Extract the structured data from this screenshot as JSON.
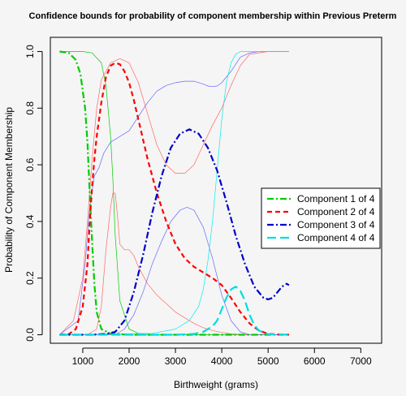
{
  "chart_data": {
    "type": "line",
    "title": "Confidence bounds for probability of component membership within Previous Preterm",
    "xlabel": "Birthweight (grams)",
    "ylabel": "Probability of Component Membership",
    "xlim": [
      300,
      7450
    ],
    "ylim": [
      -0.03,
      1.05
    ],
    "xticks": [
      1000,
      2000,
      3000,
      4000,
      5000,
      6000,
      7000
    ],
    "yticks": [
      0.0,
      0.2,
      0.4,
      0.6,
      0.8,
      1.0
    ],
    "ytick_labels": [
      "0.0",
      "0.2",
      "0.4",
      "0.6",
      "0.8",
      "1.0"
    ],
    "grid": false,
    "legend_position": "right",
    "series": [
      {
        "name": "Component 1 of 4",
        "role": "estimate",
        "color": "#00cc00",
        "dash": "dashdot",
        "width": 2.2,
        "x": [
          500,
          700,
          850,
          950,
          1050,
          1100,
          1150,
          1200,
          1250,
          1300,
          1400,
          1600,
          2000,
          3000,
          4000,
          5000,
          5450
        ],
        "y": [
          1.0,
          0.995,
          0.97,
          0.92,
          0.8,
          0.68,
          0.5,
          0.33,
          0.18,
          0.08,
          0.02,
          0.004,
          0.0,
          0.0,
          0.0,
          0.0,
          0.0
        ]
      },
      {
        "name": "Component 2 of 4",
        "role": "estimate",
        "color": "#ff0000",
        "dash": "dashed",
        "width": 2.2,
        "x": [
          500,
          700,
          850,
          1000,
          1100,
          1150,
          1200,
          1250,
          1300,
          1400,
          1500,
          1600,
          1700,
          1800,
          1900,
          2000,
          2100,
          2200,
          2400,
          2600,
          2800,
          3000,
          3200,
          3400,
          3600,
          3800,
          4000,
          4200,
          4400,
          4600,
          4800,
          5000,
          5450
        ],
        "y": [
          0.0,
          0.002,
          0.02,
          0.1,
          0.25,
          0.4,
          0.52,
          0.62,
          0.7,
          0.82,
          0.91,
          0.95,
          0.96,
          0.955,
          0.93,
          0.89,
          0.83,
          0.76,
          0.62,
          0.5,
          0.4,
          0.32,
          0.27,
          0.24,
          0.22,
          0.2,
          0.175,
          0.13,
          0.08,
          0.04,
          0.015,
          0.003,
          0.0
        ]
      },
      {
        "name": "Component 3 of 4",
        "role": "estimate",
        "color": "#0000cc",
        "dash": "dashdot",
        "width": 2.2,
        "x": [
          500,
          1200,
          1500,
          1700,
          1900,
          2100,
          2300,
          2500,
          2700,
          2900,
          3100,
          3300,
          3500,
          3700,
          3900,
          4100,
          4300,
          4500,
          4700,
          4900,
          5000,
          5100,
          5200,
          5300,
          5400,
          5450
        ],
        "y": [
          0.0,
          0.0,
          0.003,
          0.01,
          0.05,
          0.15,
          0.28,
          0.43,
          0.56,
          0.66,
          0.71,
          0.725,
          0.71,
          0.66,
          0.58,
          0.47,
          0.35,
          0.25,
          0.17,
          0.13,
          0.125,
          0.13,
          0.15,
          0.17,
          0.18,
          0.175
        ]
      },
      {
        "name": "Component 4 of 4",
        "role": "estimate",
        "color": "#00dddd",
        "dash": "longdash",
        "width": 2.2,
        "x": [
          500,
          3000,
          3400,
          3600,
          3800,
          3900,
          4000,
          4100,
          4200,
          4300,
          4400,
          4500,
          4600,
          4700,
          4800,
          5000,
          5450
        ],
        "y": [
          0.0,
          0.0,
          0.003,
          0.01,
          0.03,
          0.05,
          0.09,
          0.13,
          0.16,
          0.17,
          0.155,
          0.12,
          0.07,
          0.035,
          0.015,
          0.002,
          0.0
        ]
      },
      {
        "role": "upper-bound",
        "color": "#00cc00",
        "dash": "solid",
        "width": 0.7,
        "x": [
          500,
          1000,
          1200,
          1400,
          1500,
          1600,
          1650,
          1700,
          1800,
          2000,
          2200,
          2500,
          3000,
          5450
        ],
        "y": [
          1.0,
          1.0,
          0.995,
          0.96,
          0.88,
          0.7,
          0.55,
          0.35,
          0.12,
          0.02,
          0.005,
          0.001,
          0.0,
          0.0
        ]
      },
      {
        "role": "upper-bound",
        "color": "#ff6666",
        "dash": "solid",
        "width": 0.7,
        "x": [
          500,
          800,
          1000,
          1100,
          1200,
          1300,
          1400,
          1600,
          1800,
          2000,
          2200,
          2400,
          2600,
          2800,
          3000,
          3200,
          3400,
          3600,
          3800,
          4000,
          4200,
          4400,
          4600,
          5000,
          5450
        ],
        "y": [
          0.0,
          0.05,
          0.2,
          0.4,
          0.62,
          0.8,
          0.9,
          0.96,
          0.975,
          0.96,
          0.89,
          0.78,
          0.67,
          0.6,
          0.57,
          0.57,
          0.6,
          0.67,
          0.74,
          0.8,
          0.88,
          0.95,
          0.99,
          1.0,
          1.0
        ]
      },
      {
        "role": "lower-bound",
        "color": "#ff6666",
        "dash": "solid",
        "width": 0.7,
        "x": [
          500,
          1100,
          1300,
          1400,
          1500,
          1600,
          1650,
          1700,
          1750,
          1800,
          1900,
          2000,
          2100,
          2200,
          2400,
          2600,
          2800,
          3000,
          3200,
          3400,
          3600,
          3800,
          4000,
          4200,
          4500,
          5450
        ],
        "y": [
          0.0,
          0.0,
          0.02,
          0.1,
          0.3,
          0.45,
          0.5,
          0.5,
          0.42,
          0.32,
          0.3,
          0.3,
          0.28,
          0.24,
          0.18,
          0.14,
          0.11,
          0.08,
          0.06,
          0.04,
          0.025,
          0.015,
          0.008,
          0.003,
          0.0,
          0.0
        ]
      },
      {
        "role": "upper-bound",
        "color": "#6666ff",
        "dash": "solid",
        "width": 0.7,
        "x": [
          500,
          900,
          1050,
          1150,
          1250,
          1350,
          1450,
          1600,
          1800,
          2000,
          2200,
          2400,
          2600,
          2800,
          3000,
          3200,
          3400,
          3600,
          3700,
          3800,
          3900,
          4000,
          4200,
          4400,
          4600,
          4800,
          5000,
          5450
        ],
        "y": [
          0.0,
          0.05,
          0.25,
          0.45,
          0.56,
          0.59,
          0.64,
          0.68,
          0.7,
          0.72,
          0.77,
          0.82,
          0.86,
          0.88,
          0.89,
          0.895,
          0.895,
          0.885,
          0.878,
          0.876,
          0.878,
          0.89,
          0.93,
          0.98,
          0.995,
          1.0,
          1.0,
          1.0
        ]
      },
      {
        "role": "lower-bound",
        "color": "#6666ff",
        "dash": "solid",
        "width": 0.7,
        "x": [
          500,
          1700,
          1900,
          2100,
          2300,
          2500,
          2700,
          2900,
          3100,
          3250,
          3400,
          3600,
          3800,
          4000,
          4200,
          4400,
          4600,
          5450
        ],
        "y": [
          0.0,
          0.0,
          0.02,
          0.07,
          0.15,
          0.25,
          0.33,
          0.4,
          0.44,
          0.45,
          0.44,
          0.38,
          0.27,
          0.14,
          0.05,
          0.01,
          0.0,
          0.0
        ]
      },
      {
        "role": "upper-bound",
        "color": "#00eeee",
        "dash": "solid",
        "width": 0.7,
        "x": [
          500,
          2500,
          3000,
          3300,
          3500,
          3600,
          3700,
          3800,
          3900,
          4000,
          4100,
          4200,
          4300,
          4400,
          4600,
          5450
        ],
        "y": [
          0.0,
          0.005,
          0.02,
          0.05,
          0.1,
          0.16,
          0.26,
          0.4,
          0.58,
          0.76,
          0.89,
          0.96,
          0.99,
          1.0,
          1.0,
          1.0
        ]
      }
    ]
  }
}
